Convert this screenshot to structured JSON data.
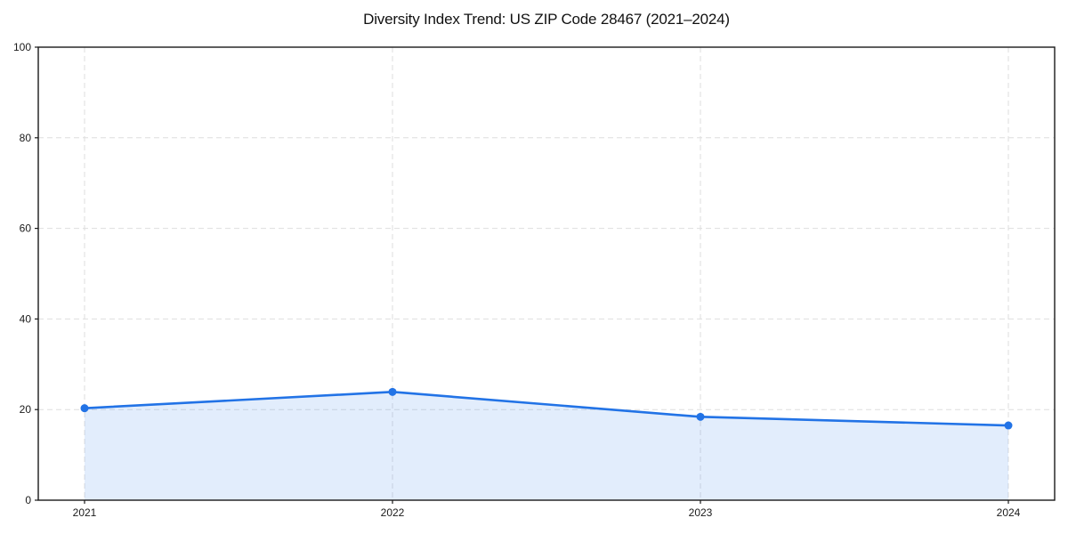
{
  "page": {
    "background": "#ffffff"
  },
  "chart_data": {
    "type": "area",
    "title": "Diversity Index Trend: US ZIP Code 28467 (2021–2024)",
    "series_name": "Diversity Index",
    "x": [
      "2021",
      "2022",
      "2023",
      "2024"
    ],
    "values": [
      20.3,
      23.9,
      18.4,
      16.5
    ],
    "xlabel": "",
    "ylabel": "",
    "ylim": [
      0,
      100
    ],
    "yticks": [
      0,
      20,
      40,
      60,
      80,
      100
    ],
    "xticks": [
      "2021",
      "2022",
      "2023",
      "2024"
    ],
    "grid": true,
    "grid_style": "dashed",
    "legend_position": "none",
    "marker": "circle",
    "colors": {
      "line": "#2273e6",
      "fill": "rgba(34,115,230,0.13)",
      "grid": "#dedede",
      "axis": "#1a1a1a",
      "tick_text": "#1a1a1a"
    },
    "tick_font_size": 12
  }
}
